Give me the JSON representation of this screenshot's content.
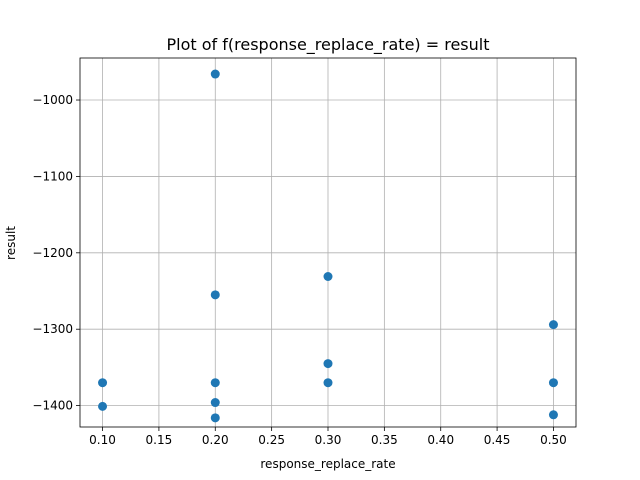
{
  "chart_data": {
    "type": "scatter",
    "title": "Plot of f(response_replace_rate) = result",
    "xlabel": "response_replace_rate",
    "ylabel": "result",
    "xlim": [
      0.08,
      0.52
    ],
    "ylim": [
      -1428,
      -945
    ],
    "xticks": [
      0.1,
      0.15,
      0.2,
      0.25,
      0.3,
      0.35,
      0.4,
      0.45,
      0.5
    ],
    "xtick_labels": [
      "0.10",
      "0.15",
      "0.20",
      "0.25",
      "0.30",
      "0.35",
      "0.40",
      "0.45",
      "0.50"
    ],
    "yticks": [
      -1400,
      -1300,
      -1200,
      -1100,
      -1000
    ],
    "ytick_labels": [
      "−1400",
      "−1300",
      "−1200",
      "−1100",
      "−1000"
    ],
    "grid": true,
    "marker_color": "#1f77b4",
    "points": [
      {
        "x": 0.1,
        "y": -1370
      },
      {
        "x": 0.1,
        "y": -1401
      },
      {
        "x": 0.2,
        "y": -966
      },
      {
        "x": 0.2,
        "y": -1255
      },
      {
        "x": 0.2,
        "y": -1370
      },
      {
        "x": 0.2,
        "y": -1396
      },
      {
        "x": 0.2,
        "y": -1416
      },
      {
        "x": 0.3,
        "y": -1231
      },
      {
        "x": 0.3,
        "y": -1345
      },
      {
        "x": 0.3,
        "y": -1370
      },
      {
        "x": 0.5,
        "y": -1294
      },
      {
        "x": 0.5,
        "y": -1370
      },
      {
        "x": 0.5,
        "y": -1412
      }
    ]
  }
}
